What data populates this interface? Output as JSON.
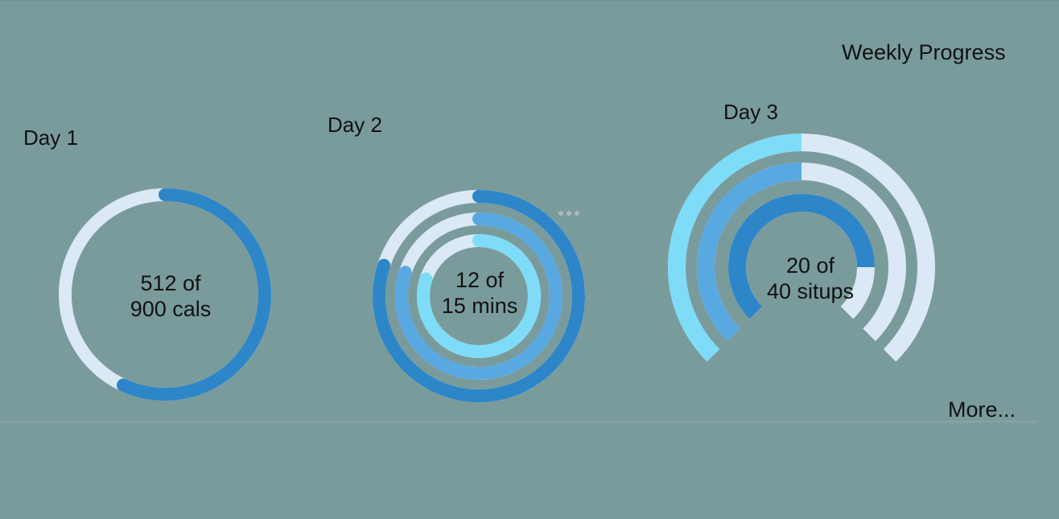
{
  "header": {
    "title": "Weekly Progress"
  },
  "footer": {
    "more_label": "More..."
  },
  "colors": {
    "background": "#7a9b9c",
    "track": "#dbe8f5",
    "blue_dark": "#2d86c8",
    "blue_mid": "#58a8e2",
    "blue_light": "#7fdcf8"
  },
  "days": [
    {
      "label": "Day 1",
      "center_line1": "512 of",
      "center_line2": "900 cals",
      "rings": [
        {
          "value": 512,
          "max": 900,
          "color": "blue_dark"
        }
      ]
    },
    {
      "label": "Day 2",
      "center_line1": "12 of",
      "center_line2": "15 mins",
      "rings": [
        {
          "value": 12,
          "max": 15,
          "color": "blue_dark"
        },
        {
          "value": 0.8,
          "max": 1,
          "color": "blue_mid"
        },
        {
          "value": 0.8,
          "max": 1,
          "color": "blue_light"
        }
      ]
    },
    {
      "label": "Day 3",
      "center_line1": "20 of",
      "center_line2": "40 situps",
      "rings": [
        {
          "value": 0.5,
          "max": 1,
          "color": "blue_light"
        },
        {
          "value": 0.5,
          "max": 1,
          "color": "blue_mid"
        },
        {
          "value": 20,
          "max": 40,
          "color": "blue_dark"
        }
      ]
    }
  ],
  "menu": {
    "icon": "more-dots-icon"
  }
}
